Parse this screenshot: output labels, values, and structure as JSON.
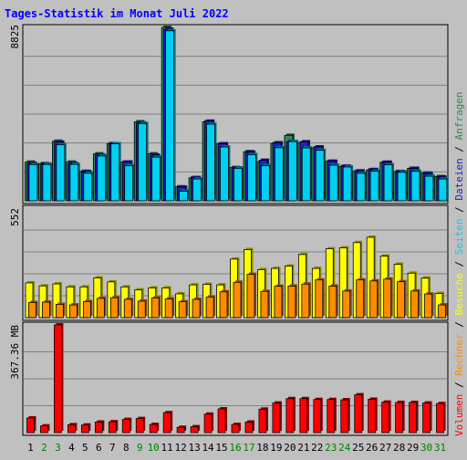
{
  "chart_data": {
    "type": "bar",
    "title": "Tages-Statistik im Monat Juli 2022",
    "categories": [
      "1",
      "2",
      "3",
      "4",
      "5",
      "6",
      "7",
      "8",
      "9",
      "10",
      "11",
      "12",
      "13",
      "14",
      "15",
      "16",
      "17",
      "18",
      "19",
      "20",
      "21",
      "22",
      "23",
      "24",
      "25",
      "26",
      "27",
      "28",
      "29",
      "30",
      "31"
    ],
    "weekend_days": [
      "2",
      "3",
      "9",
      "10",
      "16",
      "17",
      "23",
      "24",
      "30",
      "31"
    ],
    "panels": [
      {
        "id": "top",
        "scale_label": "8825",
        "ylim": [
          0,
          8825
        ],
        "series": [
          {
            "name": "Anfragen",
            "color": "#2e8b57",
            "values": [
              1970,
              1890,
              3030,
              1970,
              1500,
              2390,
              2910,
              1970,
              4020,
              2390,
              8825,
              710,
              1170,
              4020,
              2890,
              1690,
              2500,
              1990,
              2910,
              3330,
              2950,
              2690,
              2010,
              1750,
              1500,
              1570,
              1960,
              1490,
              1650,
              1410,
              1230
            ]
          },
          {
            "name": "Dateien",
            "color": "#2020c8",
            "values": [
              1900,
              1870,
              2980,
              1900,
              1480,
              2330,
              2900,
              1970,
              3960,
              2320,
              8730,
              690,
              1180,
              4050,
              2900,
              1670,
              2470,
              2060,
              2950,
              3010,
              3000,
              2740,
              2010,
              1760,
              1520,
              1590,
              1960,
              1480,
              1650,
              1380,
              1210
            ]
          },
          {
            "name": "Seiten",
            "color": "#00d0f0",
            "values": [
              1840,
              1850,
              2850,
              1850,
              1400,
              2280,
              2900,
              1780,
              3930,
              2220,
              8650,
              490,
              1110,
              3900,
              2740,
              1650,
              2350,
              1780,
              2700,
              3010,
              2690,
              2570,
              1810,
              1720,
              1400,
              1500,
              1830,
              1450,
              1500,
              1250,
              1110
            ]
          }
        ]
      },
      {
        "id": "middle",
        "scale_label": "552",
        "ylim": [
          0,
          552
        ],
        "series": [
          {
            "name": "Besuche",
            "color": "#ffff00",
            "values": [
              175,
              160,
              170,
              155,
              155,
              200,
              180,
              155,
              140,
              150,
              150,
              120,
              165,
              168,
              165,
              295,
              343,
              242,
              248,
              260,
              318,
              248,
              347,
              352,
              378,
              405,
              310,
              269,
              224,
              199,
              122
            ]
          },
          {
            "name": "Rechner",
            "color": "#ff8c00",
            "values": [
              76,
              78,
              67,
              64,
              81,
              97,
              100,
              92,
              83,
              99,
              94,
              80,
              92,
              104,
              130,
              178,
              218,
              132,
              158,
              159,
              169,
              190,
              159,
              134,
              190,
              185,
              194,
              181,
              134,
              119,
              64
            ]
          }
        ]
      },
      {
        "id": "bottom",
        "scale_label": "367.36 MB",
        "ylim": [
          0,
          367.36
        ],
        "series": [
          {
            "name": "Volumen",
            "color": "#ff0000",
            "values": [
              50,
              23,
              367.36,
              27,
              26,
              36,
              37,
              45,
              48,
              28,
              68,
              18,
              20,
              63,
              81,
              28,
              36,
              80,
              101,
              116,
              116,
              113,
              113,
              112,
              129,
              114,
              104,
              103,
              103,
              101,
              99
            ]
          }
        ]
      }
    ],
    "legend_right": [
      {
        "name": "Anfragen",
        "color": "#2e8b57"
      },
      {
        "name": "Dateien",
        "color": "#2020c8"
      },
      {
        "name": "Seiten",
        "color": "#00d0f0"
      },
      {
        "name": "Besuche",
        "color": "#ffff00"
      },
      {
        "name": "Rechner",
        "color": "#ff8c00"
      },
      {
        "name": "Volumen",
        "color": "#ff0000"
      }
    ]
  },
  "colors": {
    "background": "#c0c0c0",
    "title": "#0000ff",
    "weekday_label": "#000000",
    "weekend_label": "#008000"
  }
}
